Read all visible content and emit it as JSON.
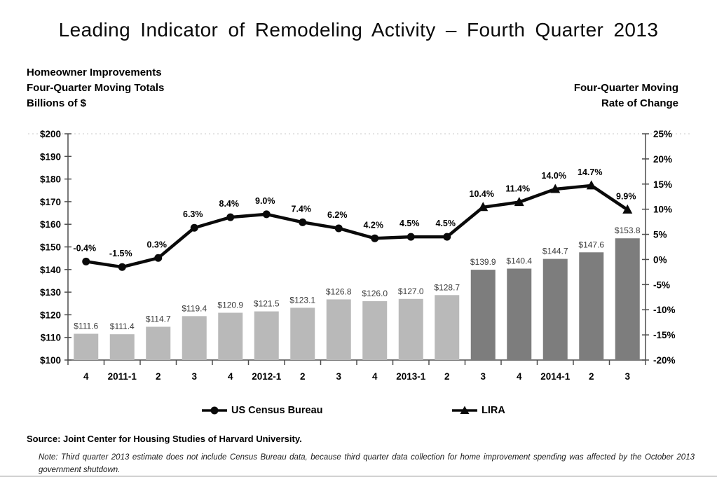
{
  "title": "Leading Indicator of Remodeling Activity – Fourth Quarter 2013",
  "header_left": {
    "lines": [
      "Homeowner Improvements",
      "Four-Quarter Moving Totals",
      "Billions of $"
    ]
  },
  "header_right": {
    "lines": [
      "Four-Quarter Moving",
      "Rate of Change"
    ]
  },
  "legend": {
    "items": [
      {
        "label": "US Census Bureau",
        "marker": "line-circle"
      },
      {
        "label": "LIRA",
        "marker": "line-triangle"
      }
    ]
  },
  "footer": {
    "source": "Source: Joint Center for Housing Studies of Harvard University.",
    "note": "Note: Third quarter 2013 estimate does not include Census Bureau data, because third quarter data collection for home improvement spending was affected by the October 2013 government shutdown."
  },
  "colors": {
    "bar_historical": "#b9b9b9",
    "bar_projection": "#7d7d7d",
    "line": "#0a0a0a",
    "axis": "#4d4d4d",
    "top_gridline": "#c8c8c8"
  },
  "chart_data": {
    "type": "bar+line",
    "title": "Leading Indicator of Remodeling Activity – Fourth Quarter 2013",
    "categories": [
      "4",
      "2011-1",
      "2",
      "3",
      "4",
      "2012-1",
      "2",
      "3",
      "4",
      "2013-1",
      "2",
      "3",
      "4",
      "2014-1",
      "2",
      "3"
    ],
    "bar_series": {
      "name": "Homeowner Improvements, Four-Quarter Moving Totals (Billions of $)",
      "axis": "left",
      "values": [
        111.6,
        111.4,
        114.7,
        119.4,
        120.9,
        121.5,
        123.1,
        126.8,
        126.0,
        127.0,
        128.7,
        139.9,
        140.4,
        144.7,
        147.6,
        153.8
      ],
      "labels": [
        "$111.6",
        "$111.4",
        "$114.7",
        "$119.4",
        "$120.9",
        "$121.5",
        "$123.1",
        "$126.8",
        "$126.0",
        "$127.0",
        "$128.7",
        "$139.9",
        "$140.4",
        "$144.7",
        "$147.6",
        "$153.8"
      ],
      "projection_start_index": 11
    },
    "line_series": {
      "name": "Four-Quarter Moving Rate of Change (%)",
      "axis": "right",
      "values": [
        -0.4,
        -1.5,
        0.3,
        6.3,
        8.4,
        9.0,
        7.4,
        6.2,
        4.2,
        4.5,
        4.5,
        10.4,
        11.4,
        14.0,
        14.7,
        9.9
      ],
      "labels": [
        "-0.4%",
        "-1.5%",
        "0.3%",
        "6.3%",
        "8.4%",
        "9.0%",
        "7.4%",
        "6.2%",
        "4.2%",
        "4.5%",
        "4.5%",
        "10.4%",
        "11.4%",
        "14.0%",
        "14.7%",
        "9.9%"
      ],
      "circle_marker_end_index": 10
    },
    "left_axis": {
      "min": 100,
      "max": 200,
      "step": 10,
      "tick_labels": [
        "$100",
        "$110",
        "$120",
        "$130",
        "$140",
        "$150",
        "$160",
        "$170",
        "$180",
        "$190",
        "$200"
      ]
    },
    "right_axis": {
      "min": -20,
      "max": 25,
      "step": 5,
      "tick_labels": [
        "-20%",
        "-15%",
        "-10%",
        "-5%",
        "0%",
        "5%",
        "10%",
        "15%",
        "20%",
        "25%"
      ]
    },
    "legend_position": "bottom",
    "grid": "dashed top gridline only"
  }
}
